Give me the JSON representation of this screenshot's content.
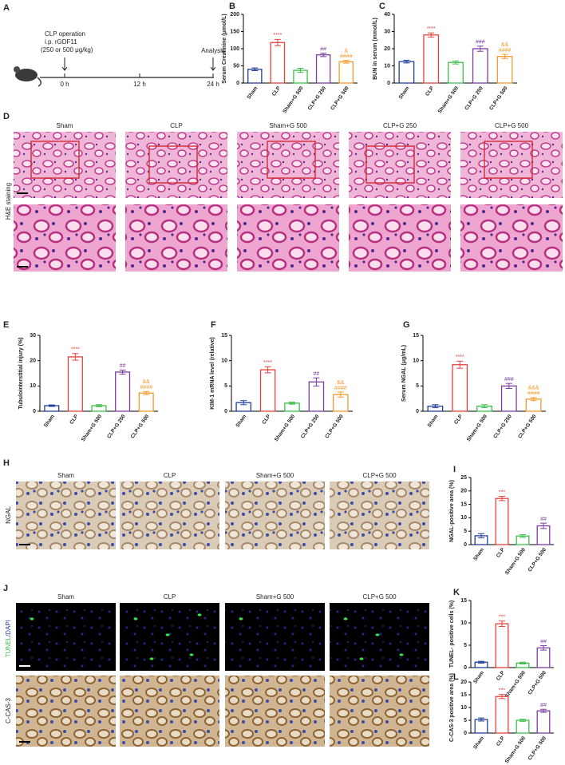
{
  "timeline": {
    "panel": "A",
    "event": "CLP operation",
    "treatment": "i.p. rGDF11",
    "dose": "(250 or 500 μg/kg)",
    "end": "Analysis",
    "times": [
      "0 h",
      "12 h",
      "24 h"
    ]
  },
  "he_staining": {
    "panel": "D",
    "row_label": "H&E staining",
    "columns": [
      "Sham",
      "CLP",
      "Sham+G 500",
      "CLP+G 250",
      "CLP+G 500"
    ]
  },
  "ngal_staining": {
    "panel": "H",
    "row_label": "NGAL",
    "columns": [
      "Sham",
      "CLP",
      "Sham+G 500",
      "CLP+G 500"
    ]
  },
  "tunel_staining": {
    "panel": "J",
    "stain": "TUNEL",
    "counterstain": "/DAPI",
    "row2_label": "C-CAS-3",
    "columns": [
      "Sham",
      "CLP",
      "Sham+G 500",
      "CLP+G 500"
    ]
  },
  "chart_data": [
    {
      "type": "bar",
      "panel": "B",
      "ylabel": "Serum Creatinine (μmol/L)",
      "categories": [
        "Sham",
        "CLP",
        "Sham+G 500",
        "CLP+G 250",
        "CLP+G 500"
      ],
      "values": [
        40,
        118,
        37,
        82,
        62
      ],
      "errors": [
        4,
        9,
        6,
        5,
        4
      ],
      "colors": [
        "#1f3f9c",
        "#e8413c",
        "#3cbf4b",
        "#7a3ea0",
        "#f39a2b"
      ],
      "annotations": [
        null,
        [
          "****"
        ],
        null,
        [
          "##"
        ],
        [
          "&",
          "####"
        ]
      ],
      "ylim": [
        0,
        200
      ],
      "yticks": [
        0,
        50,
        100,
        150,
        200
      ]
    },
    {
      "type": "bar",
      "panel": "C",
      "ylabel": "BUN in serum (mmol/L)",
      "categories": [
        "Sham",
        "CLP",
        "Sham+G 500",
        "CLP+G 250",
        "CLP+G 500"
      ],
      "values": [
        12.5,
        28,
        12,
        20,
        15.5
      ],
      "errors": [
        0.8,
        1.2,
        0.9,
        1.5,
        1.2
      ],
      "colors": [
        "#1f3f9c",
        "#e8413c",
        "#3cbf4b",
        "#7a3ea0",
        "#f39a2b"
      ],
      "annotations": [
        null,
        [
          "****"
        ],
        null,
        [
          "###"
        ],
        [
          "&&",
          "####"
        ]
      ],
      "ylim": [
        0,
        40
      ],
      "yticks": [
        0,
        10,
        20,
        30,
        40
      ]
    },
    {
      "type": "bar",
      "panel": "E",
      "ylabel": "Tubulointerstitial injury (%)",
      "categories": [
        "Sham",
        "CLP",
        "Sham+G 500",
        "CLP+G 250",
        "CLP+G 500"
      ],
      "values": [
        2.2,
        21.5,
        2.2,
        15.5,
        7.2
      ],
      "errors": [
        0.3,
        1.3,
        0.4,
        0.8,
        0.6
      ],
      "colors": [
        "#1f3f9c",
        "#e8413c",
        "#3cbf4b",
        "#7a3ea0",
        "#f39a2b"
      ],
      "annotations": [
        null,
        [
          "****"
        ],
        null,
        [
          "##"
        ],
        [
          "&&",
          "####"
        ]
      ],
      "ylim": [
        0,
        30
      ],
      "yticks": [
        0,
        10,
        20,
        30
      ]
    },
    {
      "type": "bar",
      "panel": "F",
      "ylabel": "KIM-1 mRNA level (relative)",
      "categories": [
        "Sham",
        "CLP",
        "Sham+G 500",
        "CLP+G 250",
        "CLP+G 500"
      ],
      "values": [
        1.7,
        8.2,
        1.6,
        5.8,
        3.3
      ],
      "errors": [
        0.4,
        0.6,
        0.2,
        0.8,
        0.5
      ],
      "colors": [
        "#1f3f9c",
        "#e8413c",
        "#3cbf4b",
        "#7a3ea0",
        "#f39a2b"
      ],
      "annotations": [
        null,
        [
          "****"
        ],
        null,
        [
          "##"
        ],
        [
          "&&",
          "####"
        ]
      ],
      "ylim": [
        0,
        15
      ],
      "yticks": [
        0,
        5,
        10,
        15
      ]
    },
    {
      "type": "bar",
      "panel": "G",
      "ylabel": "Serum NGAL (μg/mL)",
      "categories": [
        "Sham",
        "CLP",
        "Sham+G 500",
        "CLP+G 250",
        "CLP+G 500"
      ],
      "values": [
        1.0,
        9.2,
        1.0,
        5.0,
        2.4
      ],
      "errors": [
        0.3,
        0.7,
        0.3,
        0.5,
        0.3
      ],
      "colors": [
        "#1f3f9c",
        "#e8413c",
        "#3cbf4b",
        "#7a3ea0",
        "#f39a2b"
      ],
      "annotations": [
        null,
        [
          "****"
        ],
        null,
        [
          "###"
        ],
        [
          "&&&",
          "####"
        ]
      ],
      "ylim": [
        0,
        15
      ],
      "yticks": [
        0,
        5,
        10,
        15
      ]
    },
    {
      "type": "bar",
      "panel": "I",
      "ylabel": "NGAL-positive area (%)",
      "categories": [
        "Sham",
        "CLP",
        "Sham+G 500",
        "CLP+G 500"
      ],
      "values": [
        3.3,
        17.2,
        3.2,
        7.0
      ],
      "errors": [
        0.8,
        0.8,
        0.5,
        1.0
      ],
      "colors": [
        "#1f3f9c",
        "#e8413c",
        "#3cbf4b",
        "#7a3ea0"
      ],
      "annotations": [
        null,
        [
          "***"
        ],
        null,
        [
          "##"
        ]
      ],
      "ylim": [
        0,
        25
      ],
      "yticks": [
        0,
        5,
        10,
        15,
        20,
        25
      ]
    },
    {
      "type": "bar",
      "panel": "K",
      "ylabel": "TUNEL- positive cells (%)",
      "categories": [
        "Sham",
        "CLP",
        "Sham+G 500",
        "CLP+G 500"
      ],
      "values": [
        1.2,
        9.8,
        1.0,
        4.4
      ],
      "errors": [
        0.2,
        0.6,
        0.2,
        0.5
      ],
      "colors": [
        "#1f3f9c",
        "#e8413c",
        "#3cbf4b",
        "#7a3ea0"
      ],
      "annotations": [
        null,
        [
          "***"
        ],
        null,
        [
          "##"
        ]
      ],
      "ylim": [
        0,
        15
      ],
      "yticks": [
        0,
        5,
        10,
        15
      ]
    },
    {
      "type": "bar",
      "panel": "L",
      "ylabel": "C-CAS-3 positive area (%)",
      "categories": [
        "Sham",
        "CLP",
        "Sham+G 500",
        "CLP+G 500"
      ],
      "values": [
        5.3,
        14.3,
        5.0,
        8.7
      ],
      "errors": [
        0.6,
        0.8,
        0.4,
        0.6
      ],
      "colors": [
        "#1f3f9c",
        "#e8413c",
        "#3cbf4b",
        "#7a3ea0"
      ],
      "annotations": [
        null,
        [
          "***"
        ],
        null,
        [
          "##"
        ]
      ],
      "ylim": [
        0,
        20
      ],
      "yticks": [
        0,
        5,
        10,
        15,
        20
      ]
    }
  ]
}
